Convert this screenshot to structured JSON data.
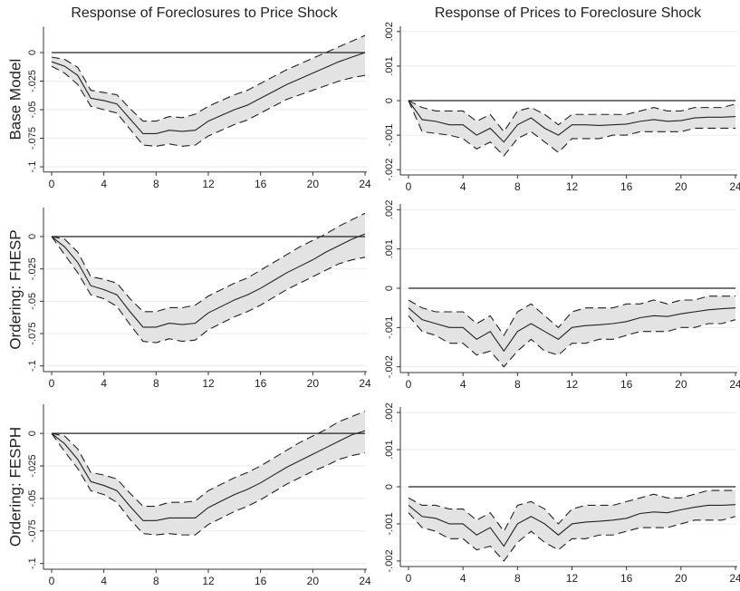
{
  "chart_data": [
    {
      "type": "line",
      "title": "Response of Foreclosures to Price Shock",
      "ylabel": "Base Model",
      "x": [
        0,
        1,
        2,
        3,
        4,
        5,
        6,
        7,
        8,
        9,
        10,
        11,
        12,
        13,
        14,
        15,
        16,
        17,
        18,
        19,
        20,
        21,
        22,
        23,
        24
      ],
      "xlim": [
        0,
        24
      ],
      "xticks": [
        0,
        4,
        8,
        12,
        16,
        20,
        24
      ],
      "ylim": [
        -0.103,
        0.021
      ],
      "yticks": [
        0,
        {
          "value": -0.025,
          "label": "-.025"
        },
        {
          "value": -0.05,
          "label": "-.05"
        },
        {
          "value": -0.075,
          "label": "-.075"
        },
        {
          "value": -0.1,
          "label": "-.1"
        }
      ],
      "grid": true,
      "hline": 0,
      "band_color": "#e3e3e3",
      "series": [
        {
          "color": "#222222",
          "style": "solid",
          "values": [
            -0.008,
            -0.012,
            -0.02,
            -0.04,
            -0.042,
            -0.045,
            -0.058,
            -0.071,
            -0.071,
            -0.068,
            -0.069,
            -0.068,
            -0.06,
            -0.055,
            -0.05,
            -0.046,
            -0.04,
            -0.034,
            -0.028,
            -0.023,
            -0.018,
            -0.013,
            -0.008,
            -0.004,
            0
          ]
        },
        {
          "color": "#222222",
          "style": "dashed",
          "values": [
            -0.012,
            -0.018,
            -0.028,
            -0.047,
            -0.05,
            -0.053,
            -0.067,
            -0.081,
            -0.082,
            -0.08,
            -0.082,
            -0.081,
            -0.073,
            -0.068,
            -0.063,
            -0.059,
            -0.053,
            -0.047,
            -0.041,
            -0.037,
            -0.033,
            -0.029,
            -0.025,
            -0.022,
            -0.02
          ]
        },
        {
          "color": "#222222",
          "style": "dashed",
          "values": [
            -0.004,
            -0.006,
            -0.013,
            -0.033,
            -0.035,
            -0.037,
            -0.049,
            -0.06,
            -0.06,
            -0.056,
            -0.057,
            -0.054,
            -0.047,
            -0.042,
            -0.037,
            -0.033,
            -0.027,
            -0.021,
            -0.015,
            -0.01,
            -0.005,
            0,
            0.005,
            0.01,
            0.015
          ]
        }
      ]
    },
    {
      "type": "line",
      "title": "Response of Prices to Foreclosure Shock",
      "x": [
        0,
        1,
        2,
        3,
        4,
        5,
        6,
        7,
        8,
        9,
        10,
        11,
        12,
        13,
        14,
        15,
        16,
        17,
        18,
        19,
        20,
        21,
        22,
        23,
        24
      ],
      "xlim": [
        0,
        24
      ],
      "xticks": [
        0,
        4,
        8,
        12,
        16,
        20,
        24
      ],
      "ylim": [
        -0.0021,
        0.0021
      ],
      "yticks": [
        {
          "value": 0.002,
          "label": ".002"
        },
        {
          "value": 0.001,
          "label": ".001"
        },
        0,
        {
          "value": -0.001,
          "label": "-.001"
        },
        {
          "value": -0.002,
          "label": "-.002"
        }
      ],
      "grid": true,
      "hline": 0,
      "band_color": "#e3e3e3",
      "series": [
        {
          "color": "#222222",
          "style": "solid",
          "values": [
            0,
            -0.00055,
            -0.0006,
            -0.0007,
            -0.0007,
            -0.001,
            -0.0008,
            -0.0012,
            -0.0007,
            -0.0005,
            -0.0008,
            -0.001,
            -0.0007,
            -0.0007,
            -0.00072,
            -0.0007,
            -0.00068,
            -0.0006,
            -0.00055,
            -0.0006,
            -0.00058,
            -0.0005,
            -0.00048,
            -0.00048,
            -0.00046
          ]
        },
        {
          "color": "#222222",
          "style": "dashed",
          "values": [
            0,
            -0.0009,
            -0.00095,
            -0.001,
            -0.0011,
            -0.0014,
            -0.0012,
            -0.0016,
            -0.0011,
            -0.0009,
            -0.0012,
            -0.0015,
            -0.0011,
            -0.0011,
            -0.0011,
            -0.001,
            -0.001,
            -0.0009,
            -0.0009,
            -0.0009,
            -0.0009,
            -0.0008,
            -0.0008,
            -0.0008,
            -0.0008
          ]
        },
        {
          "color": "#222222",
          "style": "dashed",
          "values": [
            0,
            -0.0002,
            -0.0003,
            -0.0003,
            -0.0003,
            -0.0006,
            -0.0004,
            -0.0009,
            -0.0003,
            -0.0002,
            -0.0004,
            -0.0007,
            -0.0004,
            -0.0004,
            -0.0004,
            -0.0004,
            -0.0004,
            -0.0003,
            -0.0002,
            -0.0003,
            -0.0003,
            -0.0002,
            -0.0002,
            -0.0002,
            -0.0001
          ]
        }
      ]
    },
    {
      "type": "line",
      "ylabel": "Ordering: FHESP",
      "x": [
        0,
        1,
        2,
        3,
        4,
        5,
        6,
        7,
        8,
        9,
        10,
        11,
        12,
        13,
        14,
        15,
        16,
        17,
        18,
        19,
        20,
        21,
        22,
        23,
        24
      ],
      "xlim": [
        0,
        24
      ],
      "xticks": [
        0,
        4,
        8,
        12,
        16,
        20,
        24
      ],
      "ylim": [
        -0.103,
        0.021
      ],
      "yticks": [
        0,
        {
          "value": -0.025,
          "label": "-.025"
        },
        {
          "value": -0.05,
          "label": "-.05"
        },
        {
          "value": -0.075,
          "label": "-.075"
        },
        {
          "value": -0.1,
          "label": "-.1"
        }
      ],
      "grid": true,
      "hline": 0,
      "band_color": "#e3e3e3",
      "series": [
        {
          "color": "#222222",
          "style": "solid",
          "values": [
            0,
            -0.008,
            -0.02,
            -0.038,
            -0.041,
            -0.045,
            -0.058,
            -0.07,
            -0.07,
            -0.067,
            -0.068,
            -0.067,
            -0.059,
            -0.054,
            -0.049,
            -0.045,
            -0.04,
            -0.034,
            -0.028,
            -0.023,
            -0.018,
            -0.012,
            -0.007,
            -0.002,
            0.002
          ]
        },
        {
          "color": "#222222",
          "style": "dashed",
          "values": [
            0,
            -0.014,
            -0.028,
            -0.045,
            -0.048,
            -0.054,
            -0.068,
            -0.081,
            -0.082,
            -0.079,
            -0.081,
            -0.08,
            -0.072,
            -0.067,
            -0.062,
            -0.058,
            -0.053,
            -0.047,
            -0.041,
            -0.036,
            -0.031,
            -0.026,
            -0.021,
            -0.018,
            -0.016
          ]
        },
        {
          "color": "#222222",
          "style": "dashed",
          "values": [
            0,
            -0.002,
            -0.012,
            -0.031,
            -0.033,
            -0.036,
            -0.048,
            -0.058,
            -0.058,
            -0.055,
            -0.055,
            -0.053,
            -0.046,
            -0.041,
            -0.036,
            -0.032,
            -0.026,
            -0.02,
            -0.014,
            -0.008,
            -0.003,
            0.002,
            0.008,
            0.013,
            0.018
          ]
        }
      ]
    },
    {
      "type": "line",
      "x": [
        0,
        1,
        2,
        3,
        4,
        5,
        6,
        7,
        8,
        9,
        10,
        11,
        12,
        13,
        14,
        15,
        16,
        17,
        18,
        19,
        20,
        21,
        22,
        23,
        24
      ],
      "xlim": [
        0,
        24
      ],
      "xticks": [
        0,
        4,
        8,
        12,
        16,
        20,
        24
      ],
      "ylim": [
        -0.0021,
        0.0021
      ],
      "yticks": [
        {
          "value": 0.002,
          "label": ".002"
        },
        {
          "value": 0.001,
          "label": ".001"
        },
        0,
        {
          "value": -0.001,
          "label": "-.001"
        },
        {
          "value": -0.002,
          "label": "-.002"
        }
      ],
      "grid": true,
      "hline": 0,
      "band_color": "#e3e3e3",
      "series": [
        {
          "color": "#222222",
          "style": "solid",
          "values": [
            -0.0005,
            -0.0008,
            -0.0009,
            -0.001,
            -0.001,
            -0.0013,
            -0.0011,
            -0.0016,
            -0.0011,
            -0.0009,
            -0.0011,
            -0.0013,
            -0.001,
            -0.00095,
            -0.00093,
            -0.0009,
            -0.00085,
            -0.00075,
            -0.0007,
            -0.00072,
            -0.00065,
            -0.0006,
            -0.00055,
            -0.00052,
            -0.0005
          ]
        },
        {
          "color": "#222222",
          "style": "dashed",
          "values": [
            -0.0007,
            -0.0011,
            -0.0012,
            -0.0014,
            -0.0014,
            -0.0017,
            -0.0016,
            -0.002,
            -0.0016,
            -0.0013,
            -0.0016,
            -0.0017,
            -0.0014,
            -0.0014,
            -0.0013,
            -0.0013,
            -0.0012,
            -0.0011,
            -0.0011,
            -0.0011,
            -0.001,
            -0.001,
            -0.0009,
            -0.0009,
            -0.0008
          ]
        },
        {
          "color": "#222222",
          "style": "dashed",
          "values": [
            -0.0003,
            -0.0005,
            -0.0006,
            -0.0006,
            -0.0006,
            -0.0009,
            -0.0007,
            -0.0012,
            -0.0006,
            -0.0004,
            -0.0007,
            -0.001,
            -0.0006,
            -0.0005,
            -0.0005,
            -0.0005,
            -0.0004,
            -0.0004,
            -0.0003,
            -0.0004,
            -0.0003,
            -0.0003,
            -0.0002,
            -0.0002,
            -0.0002
          ]
        }
      ]
    },
    {
      "type": "line",
      "ylabel": "Ordering: FESPH",
      "x": [
        0,
        1,
        2,
        3,
        4,
        5,
        6,
        7,
        8,
        9,
        10,
        11,
        12,
        13,
        14,
        15,
        16,
        17,
        18,
        19,
        20,
        21,
        22,
        23,
        24
      ],
      "xlim": [
        0,
        24
      ],
      "xticks": [
        0,
        4,
        8,
        12,
        16,
        20,
        24
      ],
      "ylim": [
        -0.103,
        0.021
      ],
      "yticks": [
        0,
        {
          "value": -0.025,
          "label": "-.025"
        },
        {
          "value": -0.05,
          "label": "-.05"
        },
        {
          "value": -0.075,
          "label": "-.075"
        },
        {
          "value": -0.1,
          "label": "-.1"
        }
      ],
      "grid": true,
      "hline": 0,
      "band_color": "#e3e3e3",
      "series": [
        {
          "color": "#222222",
          "style": "solid",
          "values": [
            0,
            -0.008,
            -0.02,
            -0.037,
            -0.04,
            -0.044,
            -0.056,
            -0.067,
            -0.067,
            -0.065,
            -0.065,
            -0.065,
            -0.057,
            -0.052,
            -0.047,
            -0.043,
            -0.038,
            -0.032,
            -0.026,
            -0.021,
            -0.016,
            -0.011,
            -0.006,
            -0.001,
            0.002
          ]
        },
        {
          "color": "#222222",
          "style": "dashed",
          "values": [
            0,
            -0.014,
            -0.027,
            -0.044,
            -0.047,
            -0.053,
            -0.066,
            -0.077,
            -0.078,
            -0.077,
            -0.078,
            -0.078,
            -0.07,
            -0.065,
            -0.06,
            -0.056,
            -0.051,
            -0.045,
            -0.039,
            -0.034,
            -0.029,
            -0.025,
            -0.02,
            -0.017,
            -0.015
          ]
        },
        {
          "color": "#222222",
          "style": "dashed",
          "values": [
            0,
            -0.002,
            -0.012,
            -0.03,
            -0.032,
            -0.035,
            -0.046,
            -0.056,
            -0.056,
            -0.053,
            -0.053,
            -0.052,
            -0.044,
            -0.039,
            -0.034,
            -0.03,
            -0.025,
            -0.019,
            -0.013,
            -0.007,
            -0.002,
            0.003,
            0.009,
            0.013,
            0.017
          ]
        }
      ]
    },
    {
      "type": "line",
      "x": [
        0,
        1,
        2,
        3,
        4,
        5,
        6,
        7,
        8,
        9,
        10,
        11,
        12,
        13,
        14,
        15,
        16,
        17,
        18,
        19,
        20,
        21,
        22,
        23,
        24
      ],
      "xlim": [
        0,
        24
      ],
      "xticks": [
        0,
        4,
        8,
        12,
        16,
        20,
        24
      ],
      "ylim": [
        -0.0021,
        0.0021
      ],
      "yticks": [
        {
          "value": 0.002,
          "label": ".002"
        },
        {
          "value": 0.001,
          "label": ".001"
        },
        0,
        {
          "value": -0.001,
          "label": "-.001"
        },
        {
          "value": -0.002,
          "label": "-.002"
        }
      ],
      "grid": true,
      "hline": 0,
      "band_color": "#e3e3e3",
      "series": [
        {
          "color": "#222222",
          "style": "solid",
          "values": [
            -0.0005,
            -0.0008,
            -0.00085,
            -0.001,
            -0.001,
            -0.0013,
            -0.0011,
            -0.0016,
            -0.001,
            -0.0008,
            -0.001,
            -0.0013,
            -0.001,
            -0.00095,
            -0.00093,
            -0.0009,
            -0.00085,
            -0.00072,
            -0.00068,
            -0.0007,
            -0.00062,
            -0.00055,
            -0.0005,
            -0.0005,
            -0.00048
          ]
        },
        {
          "color": "#222222",
          "style": "dashed",
          "values": [
            -0.0007,
            -0.0011,
            -0.0012,
            -0.0014,
            -0.0014,
            -0.0017,
            -0.0016,
            -0.002,
            -0.0015,
            -0.0012,
            -0.0015,
            -0.0017,
            -0.0014,
            -0.0014,
            -0.0013,
            -0.0013,
            -0.0012,
            -0.0011,
            -0.0011,
            -0.0011,
            -0.001,
            -0.0009,
            -0.0009,
            -0.0009,
            -0.0008
          ]
        },
        {
          "color": "#222222",
          "style": "dashed",
          "values": [
            -0.0003,
            -0.0005,
            -0.0005,
            -0.0006,
            -0.0006,
            -0.0009,
            -0.0007,
            -0.0012,
            -0.0005,
            -0.0004,
            -0.0006,
            -0.001,
            -0.0006,
            -0.0005,
            -0.0005,
            -0.0005,
            -0.0004,
            -0.0003,
            -0.0002,
            -0.0003,
            -0.0003,
            -0.0002,
            -0.0001,
            -0.0001,
            -0.0001
          ]
        }
      ]
    }
  ]
}
